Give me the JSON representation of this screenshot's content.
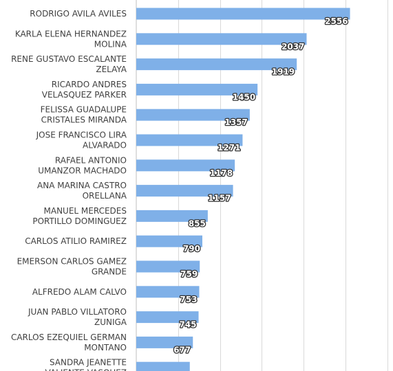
{
  "chart_data": {
    "type": "bar",
    "orientation": "horizontal",
    "categories": [
      [
        "RODRIGO AVILA AVILES"
      ],
      [
        "KARLA ELENA HERNANDEZ",
        "MOLINA"
      ],
      [
        "RENE GUSTAVO ESCALANTE",
        "ZELAYA"
      ],
      [
        "RICARDO ANDRES",
        "VELASQUEZ PARKER"
      ],
      [
        "FELISSA GUADALUPE",
        "CRISTALES MIRANDA"
      ],
      [
        "JOSE FRANCISCO LIRA",
        "ALVARADO"
      ],
      [
        "RAFAEL ANTONIO",
        "UMANZOR MACHADO"
      ],
      [
        "ANA MARINA CASTRO",
        "ORELLANA"
      ],
      [
        "MANUEL MERCEDES",
        "PORTILLO DOMINGUEZ"
      ],
      [
        "CARLOS ATILIO RAMIREZ"
      ],
      [
        "EMERSON CARLOS GAMEZ",
        "GRANDE"
      ],
      [
        "ALFREDO ALAM CALVO"
      ],
      [
        "JUAN PABLO VILLATORO",
        "ZUNIGA"
      ],
      [
        "CARLOS EZEQUIEL GERMAN",
        "MONTANO"
      ],
      [
        "SANDRA JEANETTE",
        "VALIENTE VASQUEZ"
      ]
    ],
    "values": [
      2556,
      2037,
      1919,
      1450,
      1357,
      1271,
      1178,
      1157,
      855,
      790,
      759,
      753,
      745,
      677,
      640
    ],
    "value_labels": [
      "2556",
      "2037",
      "1919",
      "1450",
      "1357",
      "1271",
      "1178",
      "1157",
      "855",
      "790",
      "759",
      "753",
      "745",
      "677",
      ""
    ],
    "xlim": [
      0,
      3000
    ],
    "grid": true,
    "bar_color": "#7fb0e8",
    "grid_color": "#d9d9d9"
  }
}
